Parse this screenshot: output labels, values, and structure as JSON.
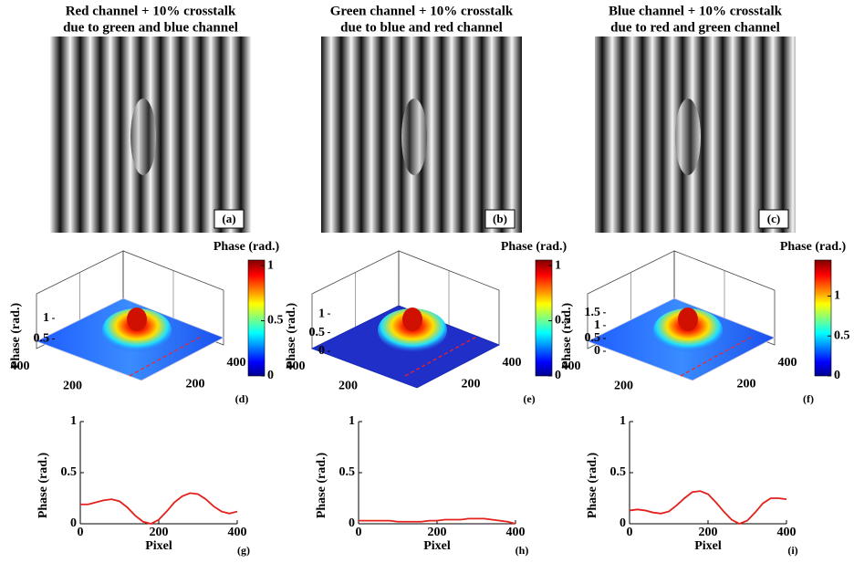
{
  "panels": [
    {
      "title": [
        "Red channel + 10% crosstalk",
        "due to green and blue channel"
      ],
      "color": "#ff0000",
      "label": "(a)"
    },
    {
      "title": [
        "Green channel + 10% crosstalk",
        "due to blue and red channel"
      ],
      "color": "#1e8c1e",
      "label": "(b)"
    },
    {
      "title": [
        "Blue channel + 10% crosstalk",
        "due to red and green channel"
      ],
      "color": "#0000ff",
      "label": "(c)"
    }
  ],
  "surfaces": [
    {
      "label": "(d)",
      "colorbar_title": "Phase (rad.)",
      "clim": [
        0,
        1.05
      ],
      "cticks": [
        0,
        0.5,
        1
      ],
      "zlabel": "Phase (rad.)",
      "zlim": [
        0.2,
        1.2
      ],
      "zticks": [
        0.5,
        1
      ],
      "left_ticks": [
        400,
        200
      ],
      "right_ticks": [
        200,
        400
      ]
    },
    {
      "label": "(e)",
      "colorbar_title": "Phase (rad.)",
      "clim": [
        0,
        1.05
      ],
      "cticks": [
        0,
        0.5,
        1
      ],
      "zlabel": "Phase (rad.)",
      "zlim": [
        0,
        1.1
      ],
      "zticks": [
        0,
        0.5,
        1
      ],
      "left_ticks": [
        400,
        200
      ],
      "right_ticks": [
        200,
        400
      ]
    },
    {
      "label": "(f)",
      "colorbar_title": "Phase (rad.)",
      "clim": [
        0,
        1.45
      ],
      "cticks": [
        0,
        0.5,
        1
      ],
      "zlabel": "Phase (rad.)",
      "zlim": [
        0,
        1.6
      ],
      "zticks": [
        0,
        0.5,
        1,
        1.5
      ],
      "left_ticks": [
        400,
        200
      ],
      "right_ticks": [
        200,
        400
      ]
    }
  ],
  "chart_data": [
    {
      "type": "line",
      "label": "(g)",
      "xlabel": "Pixel",
      "ylabel": "Phase (rad.)",
      "color": "#e3201b",
      "x": [
        0,
        20,
        40,
        60,
        80,
        100,
        120,
        140,
        160,
        180,
        200,
        220,
        240,
        260,
        280,
        300,
        320,
        340,
        360,
        380,
        400
      ],
      "values": [
        0.19,
        0.19,
        0.21,
        0.23,
        0.24,
        0.22,
        0.16,
        0.08,
        0.02,
        0.0,
        0.04,
        0.12,
        0.21,
        0.27,
        0.3,
        0.29,
        0.24,
        0.17,
        0.12,
        0.1,
        0.12
      ],
      "xlim": [
        0,
        400
      ],
      "ylim": [
        0,
        1
      ],
      "xticks": [
        0,
        200,
        400
      ],
      "yticks": [
        0,
        0.5,
        1
      ]
    },
    {
      "type": "line",
      "label": "(h)",
      "xlabel": "Pixel",
      "ylabel": "Phase (rad.)",
      "color": "#e3201b",
      "x": [
        0,
        20,
        40,
        60,
        80,
        100,
        120,
        140,
        160,
        180,
        200,
        220,
        240,
        260,
        280,
        300,
        320,
        340,
        360,
        380,
        400
      ],
      "values": [
        0.03,
        0.03,
        0.03,
        0.03,
        0.03,
        0.02,
        0.02,
        0.02,
        0.02,
        0.03,
        0.03,
        0.04,
        0.04,
        0.04,
        0.05,
        0.05,
        0.05,
        0.04,
        0.03,
        0.02,
        0.0
      ],
      "xlim": [
        0,
        400
      ],
      "ylim": [
        0,
        1
      ],
      "xticks": [
        0,
        200,
        400
      ],
      "yticks": [
        0,
        0.5,
        1
      ]
    },
    {
      "type": "line",
      "label": "(i)",
      "xlabel": "Pixel",
      "ylabel": "Phase (rad.)",
      "color": "#e3201b",
      "x": [
        0,
        20,
        40,
        60,
        80,
        100,
        120,
        140,
        160,
        180,
        200,
        220,
        240,
        260,
        280,
        300,
        320,
        340,
        360,
        380,
        400
      ],
      "values": [
        0.13,
        0.14,
        0.13,
        0.11,
        0.1,
        0.12,
        0.18,
        0.25,
        0.31,
        0.32,
        0.29,
        0.21,
        0.12,
        0.04,
        0.0,
        0.03,
        0.11,
        0.2,
        0.25,
        0.25,
        0.24
      ],
      "xlim": [
        0,
        400
      ],
      "ylim": [
        0,
        1
      ],
      "xticks": [
        0,
        200,
        400
      ],
      "yticks": [
        0,
        0.5,
        1
      ]
    }
  ]
}
